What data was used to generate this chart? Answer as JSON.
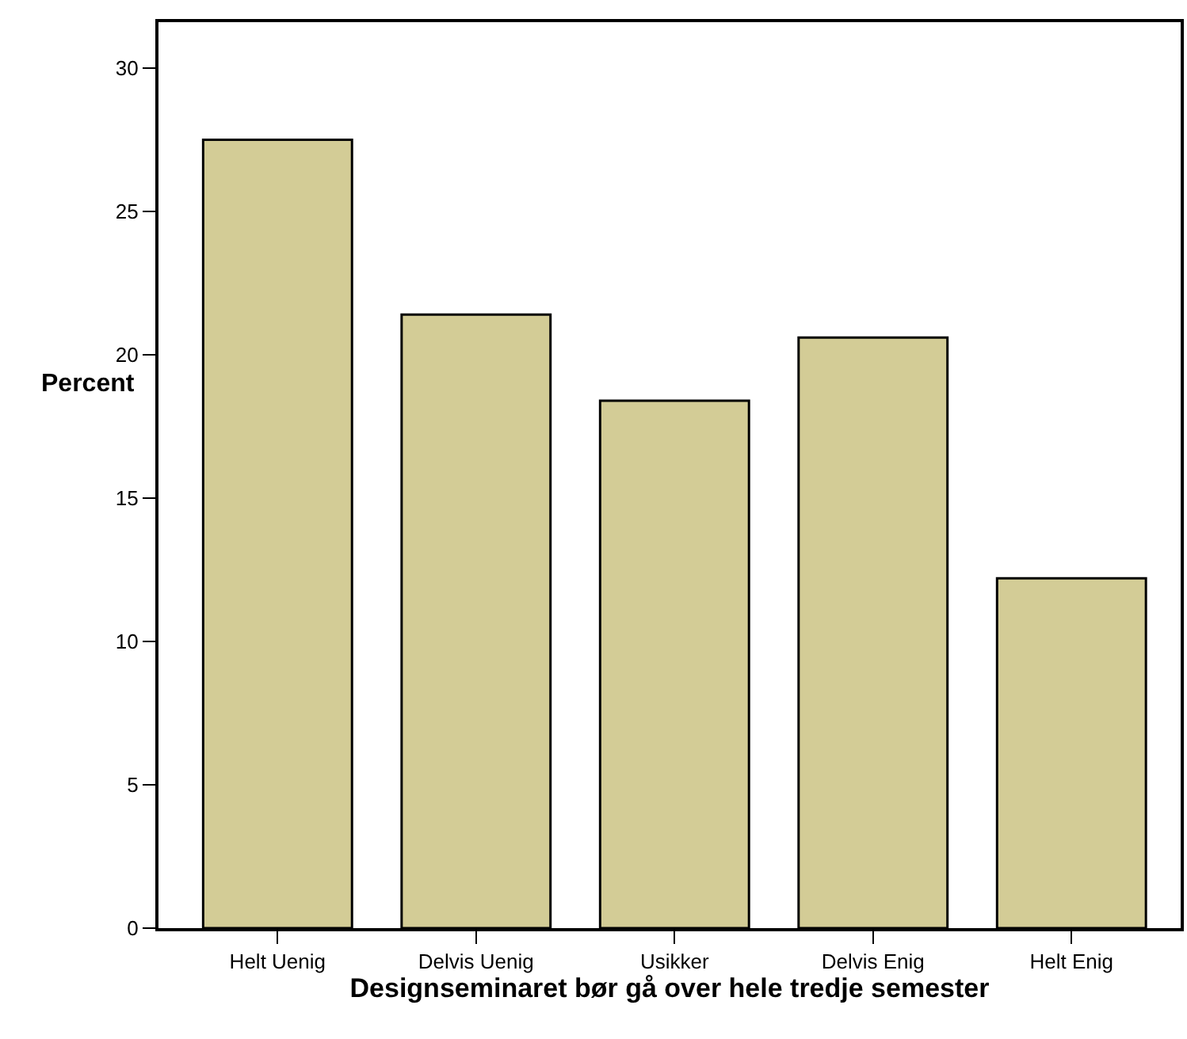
{
  "chart_data": {
    "type": "bar",
    "xlabel": "Designseminaret bør gå over hele tredje semester",
    "ylabel": "Percent",
    "categories": [
      "Helt Uenig",
      "Delvis Uenig",
      "Usikker",
      "Delvis Enig",
      "Helt Enig"
    ],
    "values": [
      27.5,
      21.4,
      18.4,
      20.6,
      12.2
    ],
    "color": "#d3cc96",
    "ylim": [
      0,
      31.6
    ],
    "yticks": [
      0,
      5,
      10,
      15,
      20,
      25,
      30
    ],
    "grid": false
  }
}
